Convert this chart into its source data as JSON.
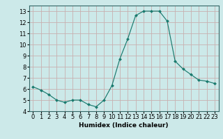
{
  "xlabel": "Humidex (Indice chaleur)",
  "x": [
    0,
    1,
    2,
    3,
    4,
    5,
    6,
    7,
    8,
    9,
    10,
    11,
    12,
    13,
    14,
    15,
    16,
    17,
    18,
    19,
    20,
    21,
    22,
    23
  ],
  "y": [
    6.2,
    5.9,
    5.5,
    5.0,
    4.8,
    5.0,
    5.0,
    4.6,
    4.4,
    5.0,
    6.3,
    8.7,
    10.5,
    12.6,
    13.0,
    13.0,
    13.0,
    12.1,
    8.5,
    7.8,
    7.3,
    6.8,
    6.7,
    6.5
  ],
  "line_color": "#1a7a6e",
  "marker": "D",
  "marker_size": 2.0,
  "background_color": "#cce9e9",
  "grid_color": "#c8b0b0",
  "ylim": [
    4,
    13.5
  ],
  "xlim": [
    -0.5,
    23.5
  ],
  "yticks": [
    4,
    5,
    6,
    7,
    8,
    9,
    10,
    11,
    12,
    13
  ],
  "xtick_labels": [
    "0",
    "1",
    "2",
    "3",
    "4",
    "5",
    "6",
    "7",
    "8",
    "9",
    "10",
    "11",
    "12",
    "13",
    "14",
    "15",
    "16",
    "17",
    "18",
    "19",
    "20",
    "21",
    "22",
    "23"
  ],
  "xlabel_fontsize": 6.5,
  "tick_fontsize": 6.0
}
